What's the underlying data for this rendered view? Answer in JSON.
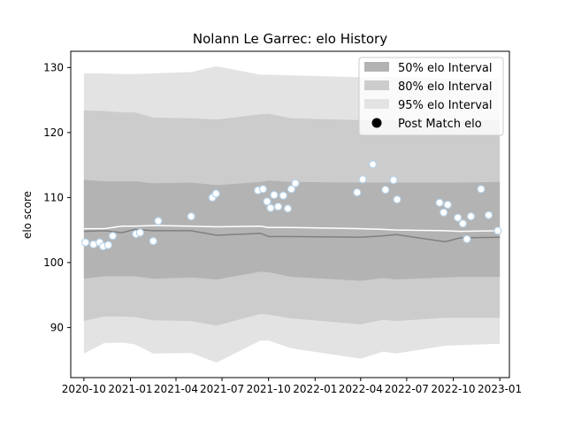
{
  "chart_data": {
    "type": "area",
    "title": "Nolann Le Garrec: elo History",
    "xlabel": "",
    "ylabel": "elo score",
    "xlim": [
      "2020-09-05",
      "2023-01-20"
    ],
    "ylim": [
      82.3,
      132.5
    ],
    "x_ticks": [
      "2020-10-01",
      "2021-01-01",
      "2021-04-01",
      "2021-07-01",
      "2021-10-01",
      "2022-01-01",
      "2022-04-01",
      "2022-07-01",
      "2022-10-01",
      "2023-01-01"
    ],
    "x_tick_labels": [
      "2020-10",
      "2021-01",
      "2021-04",
      "2021-07",
      "2021-10",
      "2022-01",
      "2022-04",
      "2022-07",
      "2022-10",
      "2023-01"
    ],
    "y_ticks": [
      90,
      100,
      110,
      120,
      130
    ],
    "legend_position": "top-right",
    "legend": [
      {
        "label": "50% elo Interval",
        "color": "#b3b3b3",
        "kind": "patch"
      },
      {
        "label": "80% elo Interval",
        "color": "#cccccc",
        "kind": "patch"
      },
      {
        "label": "95% elo Interval",
        "color": "#e3e3e3",
        "kind": "patch"
      },
      {
        "label": "Post Match elo",
        "color": "#000000",
        "kind": "marker"
      }
    ],
    "colors": {
      "band50": "#b3b3b3",
      "band80": "#cccccc",
      "band95": "#e3e3e3",
      "median_line": "#808080",
      "mean_line": "#ffffff",
      "point_fill": "#ffffff",
      "point_edge": "#b8d4ea"
    },
    "bands": {
      "x": [
        "2020-10-01",
        "2020-11-10",
        "2020-12-15",
        "2021-01-10",
        "2021-02-15",
        "2021-05-01",
        "2021-06-20",
        "2021-09-15",
        "2021-10-01",
        "2021-11-15",
        "2022-04-01",
        "2022-05-15",
        "2022-06-10",
        "2022-09-15",
        "2022-10-15",
        "2023-01-01"
      ],
      "p2_5": [
        86.0,
        87.6,
        87.7,
        87.4,
        86.0,
        86.1,
        84.6,
        88.0,
        88.0,
        86.8,
        85.2,
        86.3,
        86.0,
        87.2,
        87.3,
        87.5
      ],
      "p10": [
        91.0,
        91.7,
        91.7,
        91.6,
        91.1,
        91.0,
        90.3,
        92.1,
        92.0,
        91.4,
        90.5,
        91.2,
        91.0,
        91.5,
        91.5,
        91.5
      ],
      "p25": [
        97.5,
        97.9,
        97.9,
        97.9,
        97.5,
        97.7,
        97.4,
        98.6,
        98.5,
        97.8,
        97.2,
        97.6,
        97.4,
        97.7,
        97.8,
        97.8
      ],
      "p75": [
        112.7,
        112.5,
        112.5,
        112.5,
        112.2,
        112.3,
        111.9,
        112.4,
        112.6,
        112.4,
        112.3,
        112.3,
        112.3,
        112.3,
        112.3,
        112.4
      ],
      "p90": [
        123.4,
        123.3,
        123.1,
        123.1,
        122.3,
        122.2,
        122.0,
        122.8,
        122.9,
        122.2,
        121.9,
        121.9,
        122.0,
        121.8,
        121.9,
        122.0
      ],
      "p97_5": [
        129.1,
        129.1,
        129.0,
        129.0,
        129.1,
        129.3,
        130.2,
        128.9,
        128.9,
        128.8,
        128.5,
        128.5,
        128.6,
        128.3,
        128.2,
        128.3
      ]
    },
    "median_line": {
      "x": [
        "2020-10-01",
        "2020-11-10",
        "2020-12-15",
        "2021-01-10",
        "2021-02-15",
        "2021-05-01",
        "2021-06-20",
        "2021-09-15",
        "2021-10-01",
        "2021-11-15",
        "2022-04-01",
        "2022-05-15",
        "2022-06-10",
        "2022-09-15",
        "2022-10-15",
        "2023-01-01"
      ],
      "y": [
        104.8,
        104.9,
        104.6,
        105.1,
        104.9,
        104.9,
        104.2,
        104.5,
        104.0,
        104.0,
        103.9,
        104.1,
        104.3,
        103.2,
        103.8,
        103.9
      ]
    },
    "mean_line": {
      "x": [
        "2020-10-01",
        "2020-11-10",
        "2020-12-15",
        "2021-01-10",
        "2021-02-15",
        "2021-05-01",
        "2021-06-20",
        "2021-09-15",
        "2021-10-01",
        "2021-11-15",
        "2022-04-01",
        "2022-05-15",
        "2022-06-10",
        "2022-09-15",
        "2022-10-15",
        "2023-01-01"
      ],
      "y": [
        105.2,
        105.2,
        105.6,
        105.6,
        105.7,
        105.6,
        105.5,
        105.6,
        105.4,
        105.4,
        105.2,
        105.1,
        105.0,
        104.9,
        104.8,
        104.9
      ]
    },
    "points": {
      "name": "Post Match elo",
      "x": [
        "2020-10-04",
        "2020-10-20",
        "2020-11-01",
        "2020-11-08",
        "2020-11-18",
        "2020-11-27",
        "2021-01-12",
        "2021-01-20",
        "2021-02-15",
        "2021-02-25",
        "2021-05-01",
        "2021-06-12",
        "2021-06-19",
        "2021-09-10",
        "2021-09-20",
        "2021-09-28",
        "2021-10-05",
        "2021-10-12",
        "2021-10-20",
        "2021-10-30",
        "2021-11-08",
        "2021-11-15",
        "2021-11-23",
        "2022-03-25",
        "2022-04-05",
        "2022-04-25",
        "2022-05-20",
        "2022-06-05",
        "2022-06-12",
        "2022-09-04",
        "2022-09-12",
        "2022-09-20",
        "2022-10-10",
        "2022-10-20",
        "2022-10-28",
        "2022-11-05",
        "2022-11-25",
        "2022-12-10",
        "2022-12-28"
      ],
      "y": [
        103.1,
        102.8,
        103.1,
        102.5,
        102.7,
        104.1,
        104.4,
        104.6,
        103.3,
        106.4,
        107.1,
        110.0,
        110.6,
        111.1,
        111.3,
        109.4,
        108.4,
        110.4,
        108.6,
        110.3,
        108.3,
        111.3,
        112.2,
        110.8,
        112.8,
        115.1,
        111.2,
        112.7,
        109.7,
        109.2,
        107.7,
        108.9,
        106.9,
        106.0,
        103.6,
        107.1,
        111.3,
        107.3,
        104.9
      ]
    }
  }
}
